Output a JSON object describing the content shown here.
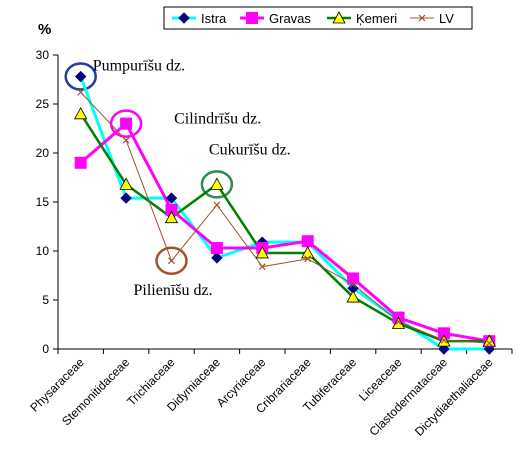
{
  "chart_data": {
    "type": "line",
    "ylabel": "%",
    "ylim": [
      0,
      30
    ],
    "yticks": [
      "0",
      "5",
      "10",
      "15",
      "20",
      "25",
      "30"
    ],
    "grid": false,
    "legend_position": "top-right",
    "categories": [
      "Physaraceae",
      "Stemonitidaceae",
      "Trichiaceae",
      "Didymiaceae",
      "Arcyriaceae",
      "Cribrariaceae",
      "Tubiferaceae",
      "Liceaceae",
      "Clastodermataceae",
      "Dictydiaethaliaceae"
    ],
    "series": [
      {
        "name": "Istra",
        "color": "#00ffff",
        "marker": "diamond",
        "marker_color": "#000080",
        "values": [
          27.8,
          15.4,
          15.4,
          9.3,
          10.9,
          10.9,
          6.2,
          3.0,
          0.0,
          0.0
        ]
      },
      {
        "name": "Gravas",
        "color": "#ff00ff",
        "marker": "square",
        "marker_color": "#ff00ff",
        "values": [
          19.0,
          23.0,
          14.2,
          10.3,
          10.3,
          11.0,
          7.2,
          3.2,
          1.6,
          0.8
        ]
      },
      {
        "name": "Ķemeri",
        "color": "#008000",
        "marker": "triangle",
        "marker_color": "#ffff00",
        "values": [
          24.0,
          16.8,
          13.4,
          16.8,
          9.8,
          9.8,
          5.3,
          2.6,
          0.8,
          0.8
        ]
      },
      {
        "name": "LV",
        "color": "#a0522d",
        "marker": "x",
        "marker_color": "#a0522d",
        "values": [
          26.2,
          21.3,
          9.0,
          14.7,
          8.4,
          9.2,
          6.6,
          2.8,
          0.9,
          0.6
        ]
      }
    ],
    "annotations": [
      {
        "text": "Pumpurīšu dz.",
        "category": "Physaraceae",
        "series": "Istra",
        "circle_color": "#1f3f9f"
      },
      {
        "text": "Cilindrīšu dz.",
        "category": "Stemonitidaceae",
        "series": "Gravas",
        "circle_color": "#ff00ff"
      },
      {
        "text": "Cukurīšu dz.",
        "category": "Didymiaceae",
        "series": "Ķemeri",
        "circle_color": "#2e8b57"
      },
      {
        "text": "Pilienīšu dz.",
        "category": "Trichiaceae",
        "series": "LV",
        "circle_color": "#a0522d"
      }
    ]
  }
}
